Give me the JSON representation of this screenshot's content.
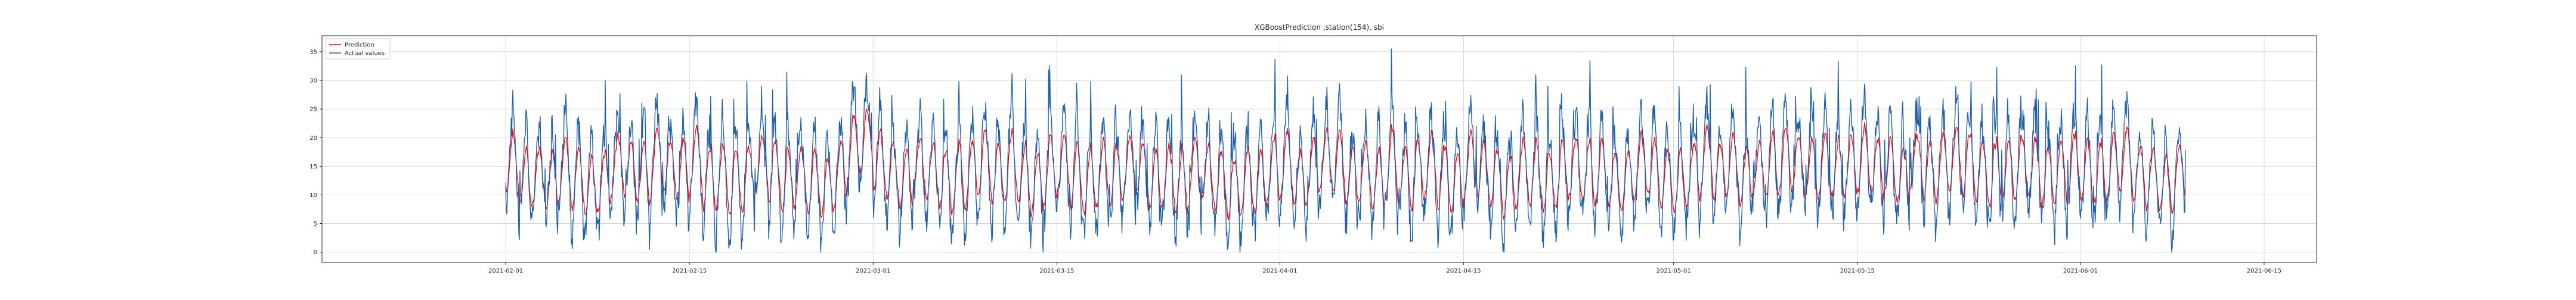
{
  "chart_data": {
    "type": "line",
    "title": "XGBoostPrediction ,station(154), sbi",
    "xlabel": "",
    "ylabel": "",
    "x_start": "2021-02-01",
    "x_end": "2021-06-09",
    "xlim": [
      "2021-01-18",
      "2021-06-19"
    ],
    "ylim": [
      -1.8,
      37.8
    ],
    "x_ticks": [
      "2021-02-01",
      "2021-02-15",
      "2021-03-01",
      "2021-03-15",
      "2021-04-01",
      "2021-04-15",
      "2021-05-01",
      "2021-05-15",
      "2021-06-01",
      "2021-06-15"
    ],
    "y_ticks": [
      0,
      5,
      10,
      15,
      20,
      25,
      30,
      35
    ],
    "grid": true,
    "legend_location": "upper left",
    "series": [
      {
        "name": "Prediction",
        "color": "#ff0000",
        "daily_mean": [
          15,
          12,
          13,
          12,
          14,
          13,
          11,
          12,
          15,
          14,
          13,
          16,
          15,
          14,
          16,
          13,
          14,
          12,
          13,
          15,
          14,
          12,
          13,
          12,
          11,
          14,
          18,
          19,
          15,
          14,
          13,
          15,
          14,
          12,
          13,
          14,
          16,
          14,
          15,
          13,
          12,
          14,
          15,
          13,
          12,
          14,
          13,
          15,
          14,
          12,
          13,
          12,
          14,
          13,
          12,
          11,
          13,
          12,
          14,
          15,
          13,
          14,
          16,
          15,
          13,
          14,
          12,
          15,
          13,
          14,
          15,
          13,
          12,
          15,
          14,
          13,
          12,
          14,
          13,
          12,
          14,
          15,
          13,
          14,
          12,
          13,
          15,
          14,
          13,
          12,
          14,
          16,
          14,
          15,
          13,
          14,
          15,
          16,
          15,
          14,
          15,
          14,
          15,
          16,
          15,
          14,
          13,
          15,
          14,
          15,
          16,
          15,
          14,
          13,
          14,
          15,
          14,
          13,
          14,
          15,
          14,
          13,
          15,
          16,
          14,
          13,
          12,
          14
        ],
        "hourly_amplitude": 5
      },
      {
        "name": "Actual values",
        "color": "#1f5fa8",
        "daily_mean": [
          15,
          12,
          14,
          12,
          15,
          13,
          11,
          12,
          16,
          14,
          13,
          17,
          15,
          14,
          17,
          13,
          14,
          12,
          13,
          16,
          14,
          12,
          13,
          12,
          11,
          14,
          20,
          21,
          16,
          14,
          13,
          16,
          14,
          12,
          13,
          14,
          17,
          14,
          15,
          13,
          12,
          15,
          16,
          13,
          12,
          14,
          13,
          16,
          14,
          12,
          13,
          12,
          15,
          13,
          12,
          11,
          13,
          12,
          14,
          16,
          13,
          14,
          17,
          16,
          13,
          14,
          12,
          16,
          13,
          14,
          16,
          13,
          12,
          16,
          14,
          13,
          12,
          15,
          13,
          12,
          14,
          16,
          13,
          14,
          12,
          13,
          16,
          14,
          13,
          12,
          15,
          17,
          14,
          16,
          13,
          14,
          16,
          17,
          16,
          14,
          16,
          14,
          16,
          17,
          16,
          14,
          13,
          16,
          14,
          16,
          17,
          16,
          14,
          13,
          14,
          16,
          14,
          13,
          14,
          16,
          14,
          13,
          16,
          17,
          14,
          13,
          12,
          14
        ],
        "hourly_amplitude": 9
      }
    ]
  }
}
